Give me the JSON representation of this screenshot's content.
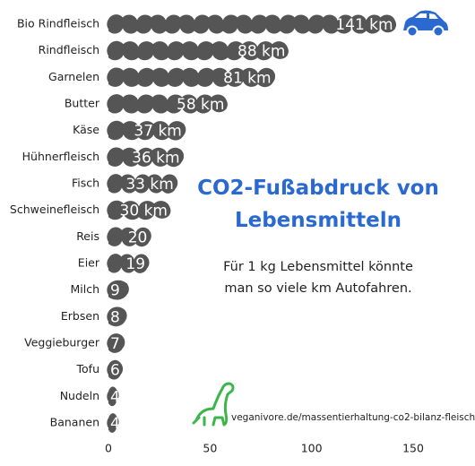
{
  "chart_data": {
    "type": "bar",
    "orientation": "horizontal",
    "title": "CO2-Fußabdruck von Lebensmitteln",
    "subtitle": "Für 1 kg Lebensmittel könnte man so viele km Autofahren.",
    "source": "veganivore.de/massentierhaltung-co2-bilanz-fleisch",
    "categories": [
      "Bio Rindfleisch",
      "Rindfleisch",
      "Garnelen",
      "Butter",
      "Käse",
      "Hühnerfleisch",
      "Fisch",
      "Schweinefleisch",
      "Reis",
      "Eier",
      "Milch",
      "Erbsen",
      "Veggieburger",
      "Tofu",
      "Nudeln",
      "Bananen"
    ],
    "values": [
      141,
      88,
      81,
      58,
      37,
      36,
      33,
      30,
      20,
      19,
      9,
      8,
      7,
      6,
      4,
      4
    ],
    "value_labels": [
      "141 km",
      "88 km",
      "81 km",
      "58 km",
      "37 km",
      "36 km",
      "33 km",
      "30 km",
      "20",
      "19",
      "9",
      "8",
      "7",
      "6",
      "4",
      "4"
    ],
    "color": "#555555",
    "xlim": [
      0,
      150
    ],
    "xticks": [
      0,
      50,
      100,
      150
    ]
  }
}
